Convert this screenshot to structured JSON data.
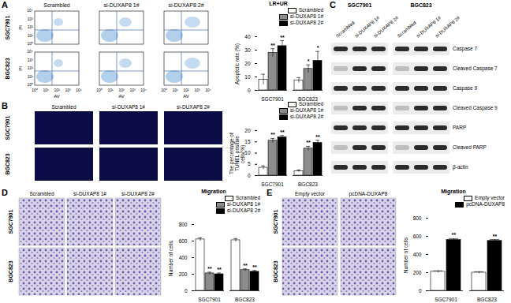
{
  "chart_data": [
    {
      "type": "bar",
      "title": "LR+UR",
      "ylabel": "Apoptotic rate (%)",
      "categories": [
        "SGC7901",
        "BGC823"
      ],
      "series": [
        {
          "name": "Scrambled",
          "color": "#ffffff",
          "values": [
            8,
            7.5
          ],
          "errors": [
            4,
            2
          ]
        },
        {
          "name": "si-DUXAP8 1#",
          "color": "#8c8c8c",
          "values": [
            28,
            16
          ],
          "errors": [
            3,
            3
          ],
          "significance": [
            "**",
            "*"
          ]
        },
        {
          "name": "si-DUXAP8 2#",
          "color": "#000000",
          "values": [
            33,
            22
          ],
          "errors": [
            4,
            7
          ],
          "significance": [
            "**",
            "*"
          ]
        }
      ],
      "ylim": [
        0,
        40
      ],
      "yticks": [
        0,
        10,
        20,
        30,
        40
      ],
      "legend": "top-right"
    },
    {
      "type": "bar",
      "ylabel": "The percentage of TUNEL positive cells(%)",
      "categories": [
        "SGC7901",
        "BGC823"
      ],
      "series": [
        {
          "name": "Scrambled",
          "color": "#ffffff",
          "values": [
            3.5,
            2
          ],
          "errors": [
            0.8,
            0.5
          ]
        },
        {
          "name": "si-DUXAP8 1#",
          "color": "#8c8c8c",
          "values": [
            15.5,
            12
          ],
          "errors": [
            1,
            1
          ],
          "significance": [
            "**",
            "**"
          ]
        },
        {
          "name": "si-DUXAP8 2#",
          "color": "#000000",
          "values": [
            17,
            14.5
          ],
          "errors": [
            0.8,
            1.2
          ],
          "significance": [
            "**",
            "**"
          ]
        }
      ],
      "ylim": [
        0,
        20
      ],
      "yticks": [
        0,
        5,
        10,
        15,
        20
      ],
      "legend": "top-right"
    },
    {
      "type": "bar",
      "title": "Migration",
      "ylabel": "Number of cells",
      "categories": [
        "SGC7901",
        "BGC823"
      ],
      "series": [
        {
          "name": "Scrambled",
          "color": "#ffffff",
          "values": [
            620,
            610
          ],
          "errors": [
            20,
            20
          ]
        },
        {
          "name": "si-DUXAP8 1#",
          "color": "#8c8c8c",
          "values": [
            210,
            250
          ],
          "errors": [
            15,
            15
          ],
          "significance": [
            "**",
            "**"
          ]
        },
        {
          "name": "si-DUXAP8 2#",
          "color": "#000000",
          "values": [
            200,
            230
          ],
          "errors": [
            15,
            15
          ],
          "significance": [
            "**",
            "**"
          ]
        }
      ],
      "ylim": [
        0,
        800
      ],
      "yticks": [
        0,
        200,
        400,
        600,
        800
      ],
      "legend": "top-right"
    },
    {
      "type": "bar",
      "title": "Migration",
      "ylabel": "Number of cells",
      "categories": [
        "SGC7901",
        "BGC823"
      ],
      "series": [
        {
          "name": "Empty vector",
          "color": "#ffffff",
          "values": [
            210,
            200
          ],
          "errors": [
            10,
            10
          ]
        },
        {
          "name": "pcDNA-DUXAP8",
          "color": "#000000",
          "values": [
            560,
            550
          ],
          "errors": [
            15,
            15
          ],
          "significance": [
            "**",
            "**"
          ]
        }
      ],
      "ylim": [
        0,
        800
      ],
      "yticks": [
        0,
        200,
        400,
        600,
        800
      ],
      "legend": "top-right"
    }
  ],
  "panels": {
    "A": {
      "letter": "A",
      "columns": [
        "Scrambled",
        "si-DUXAP8 1#",
        "si-DUXAP8 2#"
      ],
      "rows": [
        "SGC7901",
        "BGC823"
      ],
      "x_label": "AV",
      "y_label": "PI",
      "axis_ticks": [
        "10⁰",
        "10¹",
        "10²",
        "10³",
        "10⁴"
      ]
    },
    "B": {
      "letter": "B",
      "columns": [
        "Scrambled",
        "si-DUXAP8 1#",
        "si-DUXAP8 2#"
      ],
      "rows": [
        "SGC7901",
        "BGC823"
      ]
    },
    "C": {
      "letter": "C",
      "cell_lines": [
        "SGC7901",
        "BGC823"
      ],
      "lanes": [
        "Scrambled",
        "si-DUXAP8 1#",
        "si-DUXAP8 2#"
      ],
      "proteins": [
        "Caspase 7",
        "Cleaved Caspase 7",
        "Caspase 9",
        "Cleaved Caspase 9",
        "PARP",
        "Cleaved PARP",
        "β-actin"
      ]
    },
    "D": {
      "letter": "D",
      "columns": [
        "Scrambled",
        "si-DUXAP8 1#",
        "si-DUXAP8 2#"
      ],
      "rows": [
        "SGC7901",
        "BGC823"
      ]
    },
    "E": {
      "letter": "E",
      "columns": [
        "Empty vector",
        "pcDNA-DUXAP8"
      ],
      "rows": [
        "SGC7901",
        "BGC823"
      ]
    }
  }
}
